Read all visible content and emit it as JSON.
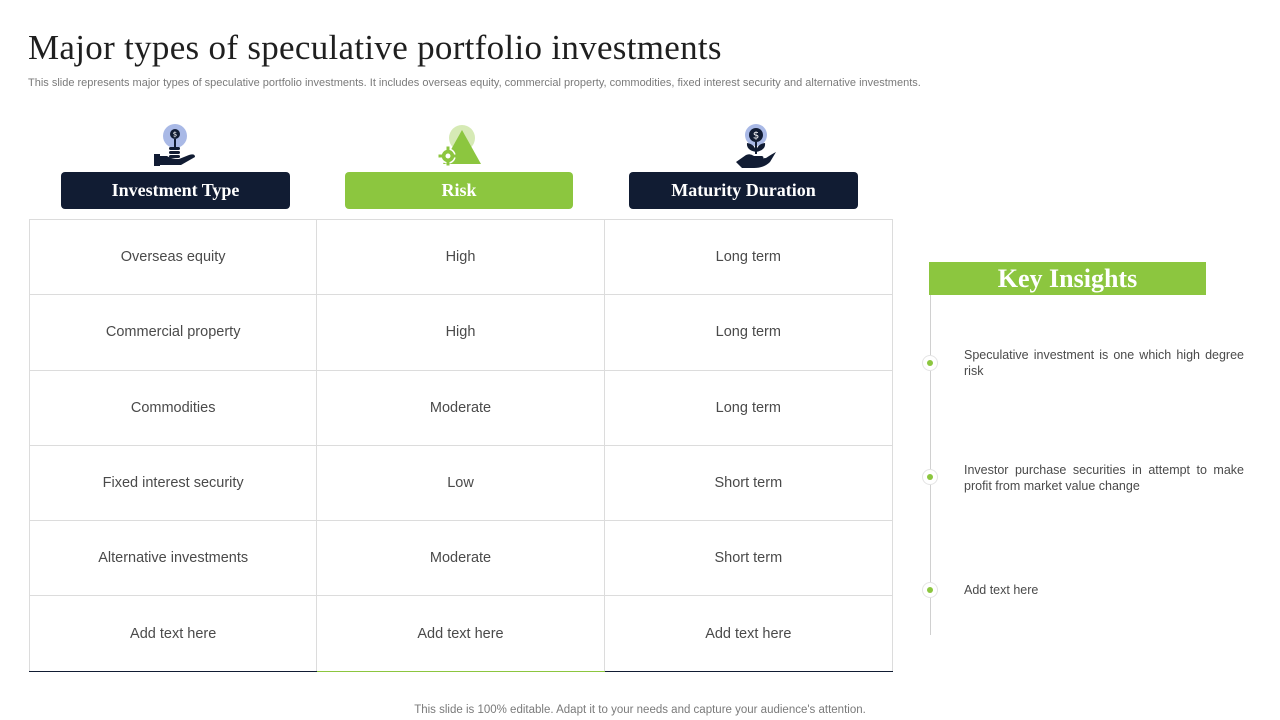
{
  "slide": {
    "title": "Major types of speculative portfolio investments",
    "subtitle": "This slide represents  major types of speculative portfolio investments. It includes overseas equity, commercial property, commodities, fixed interest security and alternative investments.",
    "footer": "This slide is 100% editable. Adapt it to your needs and capture your audience's attention."
  },
  "colors": {
    "navy": "#111c33",
    "green": "#8cc63f",
    "icon_circle": "#a9b9e6"
  },
  "icons": [
    "plant-money-hand-icon",
    "risk-triangle-gear-icon",
    "dollar-plant-hand-icon"
  ],
  "table": {
    "headers": [
      "Investment Type",
      "Risk",
      "Maturity Duration"
    ],
    "rows": [
      [
        "Overseas equity",
        "High",
        "Long term"
      ],
      [
        "Commercial property",
        "High",
        "Long term"
      ],
      [
        "Commodities",
        "Moderate",
        "Long term"
      ],
      [
        "Fixed interest security",
        "Low",
        "Short term"
      ],
      [
        "Alternative investments",
        "Moderate",
        "Short term"
      ],
      [
        "Add text here",
        "Add text here",
        "Add text here"
      ]
    ]
  },
  "insights": {
    "title": "Key Insights",
    "items": [
      "Speculative investment is one which high degree risk",
      "Investor purchase securities in attempt to make profit from market value change",
      "Add text here"
    ]
  }
}
